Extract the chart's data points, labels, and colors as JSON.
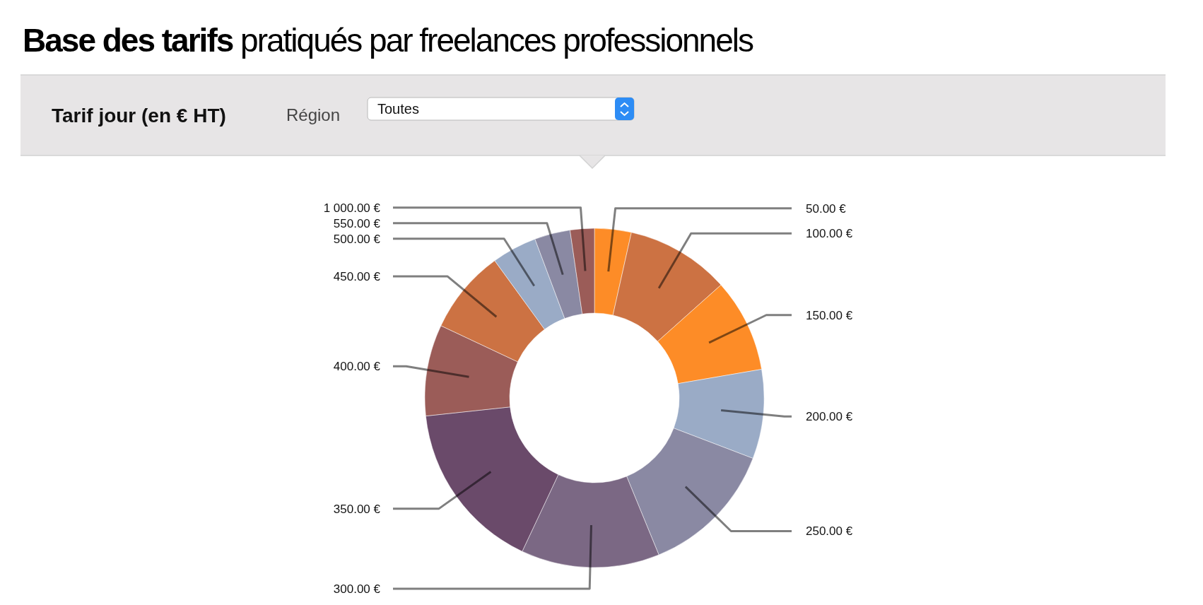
{
  "chart_data": {
    "type": "donut",
    "title": "Base des tarifs pratiqués par freelances professionnels",
    "subtitle": "Tarif jour (en € HT)",
    "annotations": [
      "Région",
      "Toutes"
    ],
    "categories": [
      "50.00 €",
      "100.00 €",
      "150.00 €",
      "200.00 €",
      "250.00 €",
      "300.00 €",
      "350.00 €",
      "400.00 €",
      "450.00 €",
      "500.00 €",
      "550.00 €",
      "1 000.00 €"
    ],
    "values": [
      3.5,
      9.9,
      8.9,
      8.5,
      13.0,
      13.2,
      16.3,
      8.7,
      8.0,
      4.3,
      3.4,
      2.3
    ],
    "colors": [
      "#fd8c27",
      "#cc7243",
      "#fd8c27",
      "#9aabc6",
      "#8a89a3",
      "#7b6884",
      "#6a4a6a",
      "#9b5c58",
      "#cc7243",
      "#9aabc6",
      "#8a89a3",
      "#9b5c58"
    ]
  }
}
